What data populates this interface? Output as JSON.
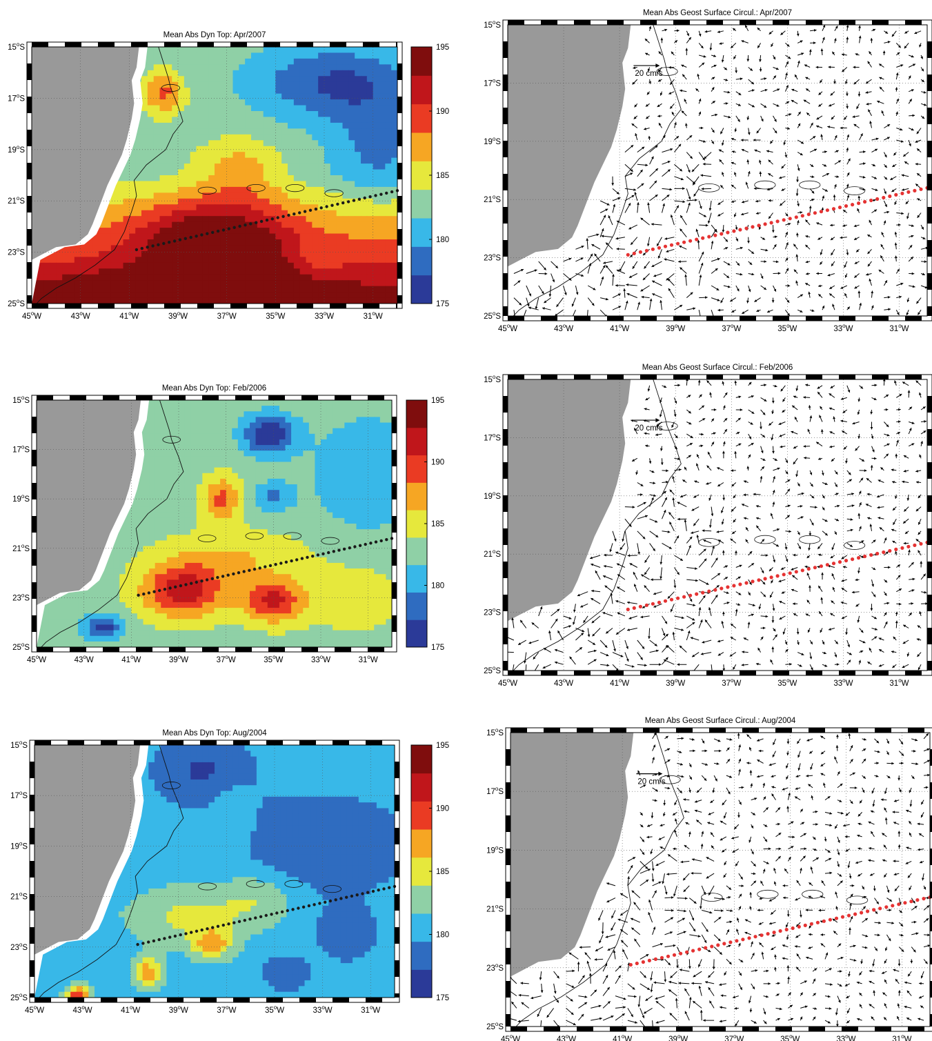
{
  "figure": {
    "panels": [
      {
        "kind": "dyn",
        "title": "Mean Abs Dyn Top: Apr/2007",
        "scenario": "warm"
      },
      {
        "kind": "circ",
        "title": "Mean Abs Geost Surface Circul.: Apr/2007",
        "scale_label": "20 cm/s",
        "seed": 3
      },
      {
        "kind": "dyn",
        "title": "Mean Abs Dyn Top: Feb/2006",
        "scenario": "mixed"
      },
      {
        "kind": "circ",
        "title": "Mean Abs Geost Surface Circul.: Feb/2006",
        "scale_label": "20 cm/s",
        "seed": 7
      },
      {
        "kind": "dyn",
        "title": "Mean Abs Dyn Top: Aug/2004",
        "scenario": "cool"
      },
      {
        "kind": "circ",
        "title": "Mean Abs Geost Surface Circul.: Aug/2004",
        "scale_label": "20 cm/s",
        "seed": 11
      }
    ],
    "x_ticks": [
      {
        "deg": "45",
        "hemi": "W"
      },
      {
        "deg": "43",
        "hemi": "W"
      },
      {
        "deg": "41",
        "hemi": "W"
      },
      {
        "deg": "39",
        "hemi": "W"
      },
      {
        "deg": "37",
        "hemi": "W"
      },
      {
        "deg": "35",
        "hemi": "W"
      },
      {
        "deg": "33",
        "hemi": "W"
      },
      {
        "deg": "31",
        "hemi": "W"
      }
    ],
    "y_ticks": [
      {
        "deg": "15",
        "hemi": "S"
      },
      {
        "deg": "17",
        "hemi": "S"
      },
      {
        "deg": "19",
        "hemi": "S"
      },
      {
        "deg": "21",
        "hemi": "S"
      },
      {
        "deg": "23",
        "hemi": "S"
      },
      {
        "deg": "25",
        "hemi": "S"
      }
    ],
    "colorbar": {
      "min": 175,
      "max": 195,
      "ticks": [
        "195",
        "190",
        "185",
        "180",
        "175"
      ],
      "colors": [
        "#2b3a98",
        "#2f6cc0",
        "#38b8e8",
        "#8fd0a6",
        "#e6e83c",
        "#f6a623",
        "#ea3b23",
        "#c0161b",
        "#7f0d0d"
      ]
    },
    "land_color": "#999999",
    "section_line_color_dyn": "#1a1a1a",
    "section_line_color_circ": "#e53333"
  }
}
